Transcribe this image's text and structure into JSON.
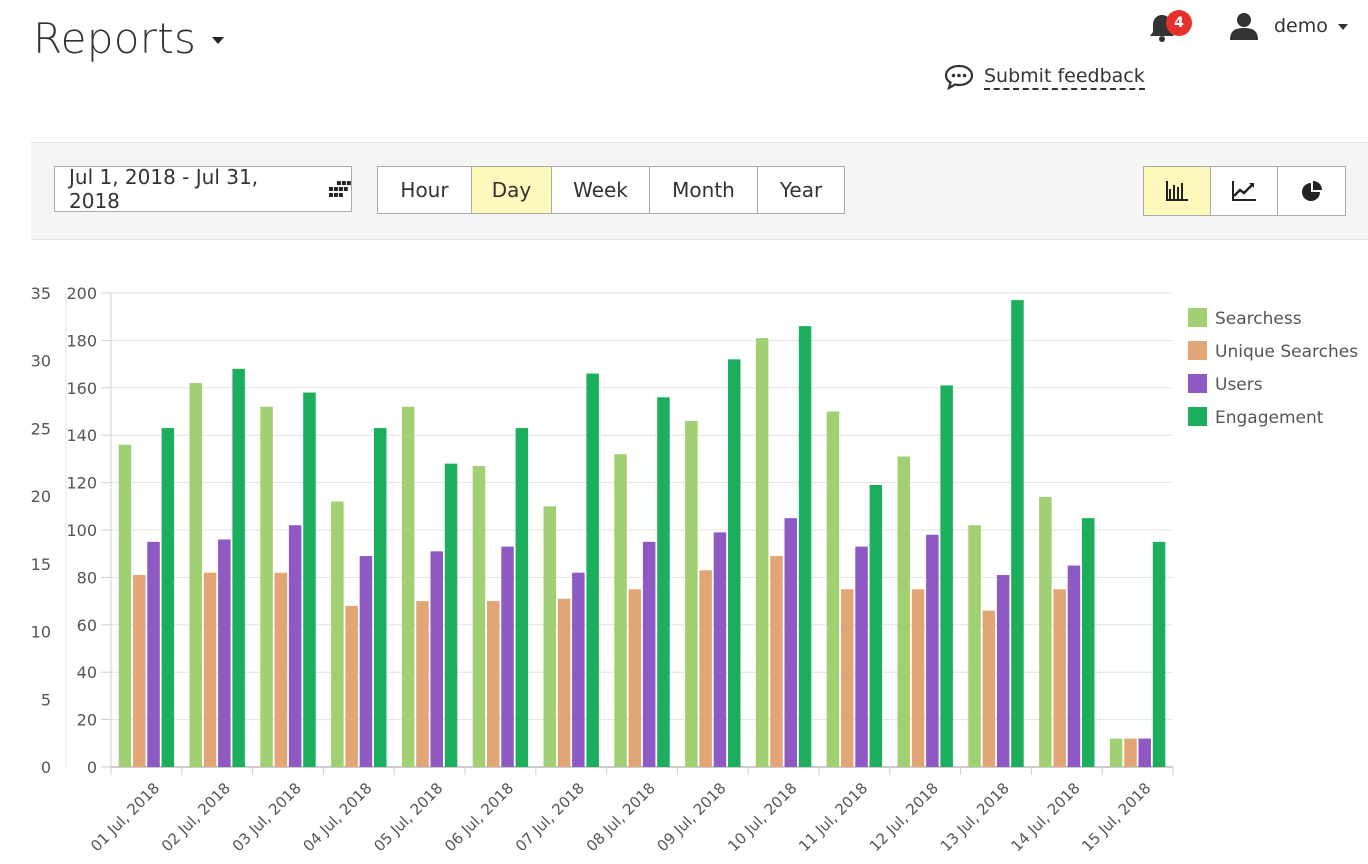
{
  "header": {
    "title": "Reports",
    "notifications_count": "4",
    "user_name": "demo",
    "feedback_label": "Submit feedback"
  },
  "toolbar": {
    "date_range": "Jul 1, 2018 - Jul 31, 2018",
    "granularity": [
      {
        "label": "Hour",
        "active": false
      },
      {
        "label": "Day",
        "active": true
      },
      {
        "label": "Week",
        "active": false
      },
      {
        "label": "Month",
        "active": false
      },
      {
        "label": "Year",
        "active": false
      }
    ],
    "chart_views": [
      {
        "icon": "bar-chart-icon",
        "active": true
      },
      {
        "icon": "line-chart-icon",
        "active": false
      },
      {
        "icon": "pie-chart-icon",
        "active": false
      }
    ],
    "accent_color": "#fff8bd"
  },
  "chart_data": {
    "type": "bar",
    "categories": [
      "01 Jul, 2018",
      "02 Jul, 2018",
      "03 Jul, 2018",
      "04 Jul, 2018",
      "05 Jul, 2018",
      "06 Jul, 2018",
      "07 Jul, 2018",
      "08 Jul, 2018",
      "09 Jul, 2018",
      "10 Jul, 2018",
      "11 Jul, 2018",
      "12 Jul, 2018",
      "13 Jul, 2018",
      "14 Jul, 2018",
      "15 Jul, 2018"
    ],
    "left_axis": {
      "ticks": [
        0,
        5,
        10,
        15,
        20,
        25,
        30,
        35
      ],
      "ylim": [
        0,
        35
      ]
    },
    "right_axis": {
      "ticks": [
        0,
        20,
        40,
        60,
        80,
        100,
        120,
        140,
        160,
        180,
        200
      ],
      "ylim": [
        0,
        200
      ]
    },
    "legend_position": "right",
    "grid": true,
    "series": [
      {
        "name": "Searchess",
        "color": "#a0d073",
        "axis": "right",
        "values": [
          136,
          162,
          152,
          112,
          152,
          127,
          110,
          132,
          146,
          181,
          150,
          131,
          102,
          114,
          12
        ]
      },
      {
        "name": "Unique Searches",
        "color": "#e2a676",
        "axis": "right",
        "values": [
          81,
          82,
          82,
          68,
          70,
          70,
          71,
          75,
          83,
          89,
          75,
          75,
          66,
          75,
          12
        ]
      },
      {
        "name": "Users",
        "color": "#8f59c4",
        "axis": "right",
        "values": [
          95,
          96,
          102,
          89,
          91,
          93,
          82,
          95,
          99,
          105,
          93,
          98,
          81,
          85,
          12
        ]
      },
      {
        "name": "Engagement",
        "color": "#1baf5d",
        "axis": "right",
        "values": [
          143,
          168,
          158,
          143,
          128,
          143,
          166,
          156,
          172,
          186,
          119,
          161,
          197,
          105,
          95
        ]
      }
    ]
  }
}
